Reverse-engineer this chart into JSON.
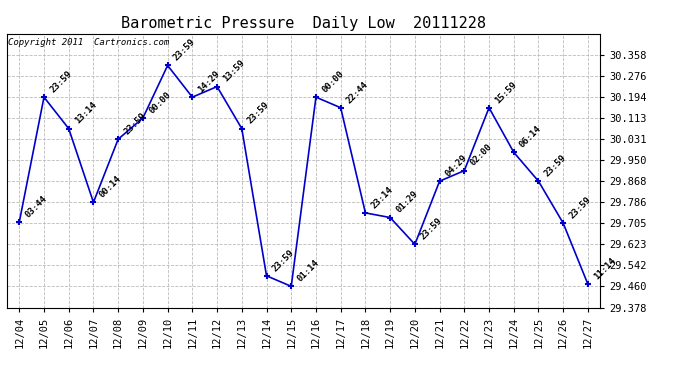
{
  "title": "Barometric Pressure  Daily Low  20111228",
  "copyright": "Copyright 2011  Cartronics.com",
  "x_labels": [
    "12/04",
    "12/05",
    "12/06",
    "12/07",
    "12/08",
    "12/09",
    "12/10",
    "12/11",
    "12/12",
    "12/13",
    "12/14",
    "12/15",
    "12/16",
    "12/17",
    "12/18",
    "12/19",
    "12/20",
    "12/21",
    "12/22",
    "12/23",
    "12/24",
    "12/25",
    "12/26",
    "12/27"
  ],
  "y_values": [
    29.709,
    30.194,
    30.072,
    29.786,
    30.031,
    30.113,
    30.317,
    30.194,
    30.235,
    30.072,
    29.501,
    29.46,
    30.194,
    30.153,
    29.745,
    29.727,
    29.623,
    29.868,
    29.909,
    30.153,
    29.98,
    29.868,
    29.705,
    29.468
  ],
  "point_labels": [
    "03:44",
    "23:59",
    "13:14",
    "00:14",
    "23:59",
    "00:00",
    "23:59",
    "14:29",
    "13:59",
    "23:59",
    "23:59",
    "01:14",
    "00:00",
    "22:44",
    "23:14",
    "01:29",
    "23:59",
    "04:29",
    "02:00",
    "15:59",
    "06:14",
    "23:59",
    "23:59",
    "11:14"
  ],
  "ylim_min": 29.378,
  "ylim_max": 30.44,
  "y_ticks": [
    29.378,
    29.46,
    29.542,
    29.623,
    29.705,
    29.786,
    29.868,
    29.95,
    30.031,
    30.113,
    30.194,
    30.276,
    30.358
  ],
  "y_tick_labels": [
    "29.378",
    "29.460",
    "29.542",
    "29.623",
    "29.705",
    "29.786",
    "29.868",
    "29.950",
    "30.031",
    "30.113",
    "30.194",
    "30.276",
    "30.358"
  ],
  "line_color": "#0000cc",
  "marker_color": "#0000cc",
  "bg_color": "#ffffff",
  "grid_color": "#bbbbbb",
  "title_fontsize": 11,
  "copyright_fontsize": 6.5,
  "label_fontsize": 6.5,
  "tick_fontsize": 7.5,
  "figwidth": 6.9,
  "figheight": 3.75,
  "dpi": 100
}
